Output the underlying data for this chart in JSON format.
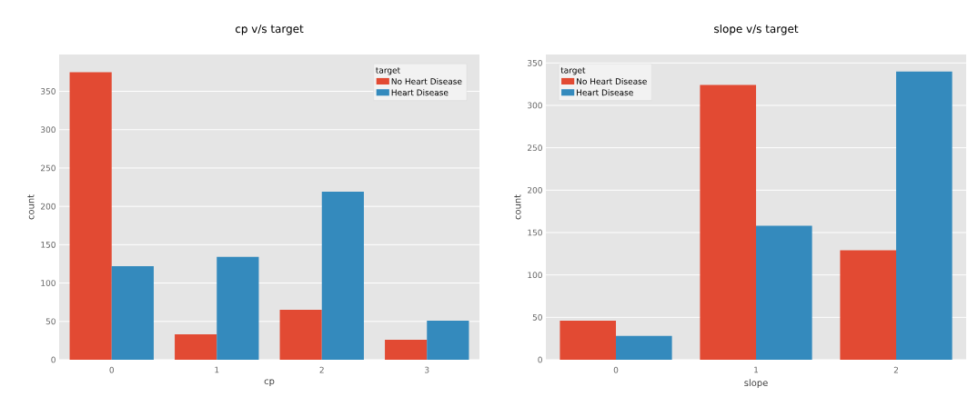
{
  "chart_data": [
    {
      "type": "bar",
      "title": "cp v/s target",
      "xlabel": "cp",
      "ylabel": "count",
      "legend_title": "target",
      "categories": [
        "0",
        "1",
        "2",
        "3"
      ],
      "series": [
        {
          "name": "No Heart Disease",
          "color": "#e24a33",
          "values": [
            375,
            33,
            65,
            26
          ]
        },
        {
          "name": "Heart Disease",
          "color": "#348abd",
          "values": [
            122,
            134,
            219,
            51
          ]
        }
      ],
      "ylim": [
        0,
        398
      ],
      "yticks": [
        0,
        50,
        100,
        150,
        200,
        250,
        300,
        350
      ],
      "grid": "y",
      "legend": "top right"
    },
    {
      "type": "bar",
      "title": "slope v/s target",
      "xlabel": "slope",
      "ylabel": "count",
      "legend_title": "target",
      "categories": [
        "0",
        "1",
        "2"
      ],
      "series": [
        {
          "name": "No Heart Disease",
          "color": "#e24a33",
          "values": [
            46,
            324,
            129
          ]
        },
        {
          "name": "Heart Disease",
          "color": "#348abd",
          "values": [
            28,
            158,
            340
          ]
        }
      ],
      "ylim": [
        0,
        360
      ],
      "yticks": [
        0,
        50,
        100,
        150,
        200,
        250,
        300,
        350
      ],
      "grid": "y",
      "legend": "top left"
    }
  ]
}
